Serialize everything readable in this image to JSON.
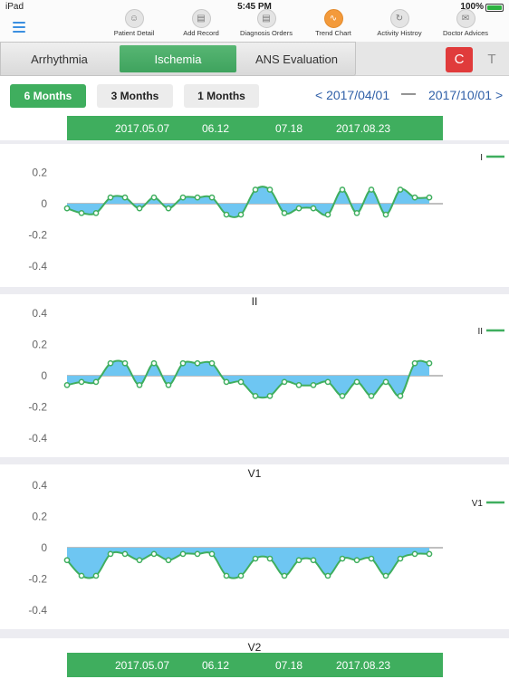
{
  "status": {
    "carrier": "iPad",
    "time": "5:45 PM",
    "battery": "100%",
    "battery_level": 1.0
  },
  "toolbar": {
    "items": [
      {
        "label": "Patient Detail",
        "icon": "patient-icon"
      },
      {
        "label": "Add Record",
        "icon": "add-record-icon"
      },
      {
        "label": "Diagnosis Orders",
        "icon": "diagnosis-icon"
      },
      {
        "label": "Trend Chart",
        "icon": "trend-icon",
        "active": true
      },
      {
        "label": "Activity Histroy",
        "icon": "history-icon"
      },
      {
        "label": "Doctor Advices",
        "icon": "advice-icon"
      }
    ]
  },
  "tabs": [
    {
      "label": "Arrhythmia"
    },
    {
      "label": "Ischemia",
      "active": true
    },
    {
      "label": "ANS Evaluation"
    }
  ],
  "side_buttons": {
    "c": "C",
    "t": "T",
    "c_color": "#e03b3b"
  },
  "range": {
    "buttons": [
      {
        "label": "6 Months",
        "active": true
      },
      {
        "label": "3 Months"
      },
      {
        "label": "1 Months"
      }
    ],
    "start": "< 2017/04/01",
    "separator": "—",
    "end": "2017/10/01 >"
  },
  "date_axis": [
    "2017.05.07",
    "06.12",
    "07.18",
    "2017.08.23"
  ],
  "colors": {
    "accent": "#3fae5e",
    "fill": "#6ec6f2",
    "line": "#3fae5e",
    "link": "#3060a8",
    "active_tool": "#f39a3b"
  },
  "chart_data": [
    {
      "type": "area",
      "title": "",
      "legend": "I",
      "yticks": [
        "0.2",
        "0",
        "-0.2",
        "-0.4"
      ],
      "ylim": [
        -0.45,
        0.45
      ],
      "values": [
        -0.03,
        -0.06,
        -0.06,
        0.04,
        0.04,
        -0.03,
        0.04,
        -0.03,
        0.04,
        0.04,
        0.04,
        -0.07,
        -0.07,
        0.09,
        0.09,
        -0.06,
        -0.03,
        -0.03,
        -0.07,
        0.09,
        -0.06,
        0.09,
        -0.07,
        0.09,
        0.04,
        0.04
      ]
    },
    {
      "type": "area",
      "title": "II",
      "legend": "II",
      "yticks": [
        "0.4",
        "0.2",
        "0",
        "-0.2",
        "-0.4"
      ],
      "ylim": [
        -0.45,
        0.45
      ],
      "values": [
        -0.06,
        -0.04,
        -0.04,
        0.08,
        0.08,
        -0.06,
        0.08,
        -0.06,
        0.08,
        0.08,
        0.08,
        -0.04,
        -0.04,
        -0.13,
        -0.13,
        -0.04,
        -0.06,
        -0.06,
        -0.04,
        -0.13,
        -0.04,
        -0.13,
        -0.04,
        -0.13,
        0.08,
        0.08
      ]
    },
    {
      "type": "area",
      "title": "V1",
      "legend": "V1",
      "yticks": [
        "0.4",
        "0.2",
        "0",
        "-0.2",
        "-0.4"
      ],
      "ylim": [
        -0.45,
        0.45
      ],
      "values": [
        -0.08,
        -0.18,
        -0.18,
        -0.04,
        -0.04,
        -0.08,
        -0.04,
        -0.08,
        -0.04,
        -0.04,
        -0.04,
        -0.18,
        -0.18,
        -0.07,
        -0.07,
        -0.18,
        -0.08,
        -0.08,
        -0.18,
        -0.07,
        -0.08,
        -0.07,
        -0.18,
        -0.07,
        -0.04,
        -0.04
      ]
    }
  ],
  "next_panel_title": "V2"
}
